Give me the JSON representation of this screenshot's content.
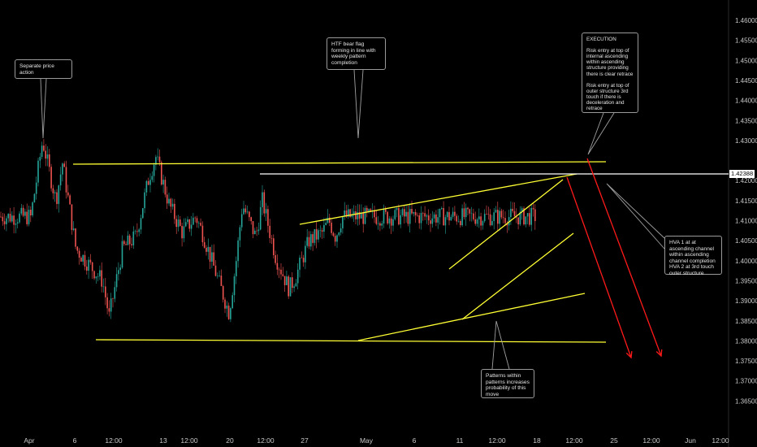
{
  "chart_data": {
    "type": "line",
    "title": "",
    "xlabel": "",
    "ylabel": "",
    "ylim": [
      1.3575,
      1.4635
    ],
    "grid": false,
    "yticks": [
      "1.46000",
      "1.45500",
      "1.45000",
      "1.44500",
      "1.44000",
      "1.43500",
      "1.43000",
      "1.42500",
      "1.42000",
      "1.41500",
      "1.41000",
      "1.40500",
      "1.40000",
      "1.39500",
      "1.39000",
      "1.38500",
      "1.38000",
      "1.37500",
      "1.37000",
      "1.36500"
    ],
    "xticks": [
      "Apr",
      "6",
      "12:00",
      "13",
      "12:00",
      "20",
      "12:00",
      "27",
      "May",
      "6",
      "11",
      "12:00",
      "18",
      "12:00",
      "25",
      "12:00",
      "Jun",
      "12:00"
    ],
    "current_price": "1.42388",
    "price_series": [
      {
        "date": "Apr 1",
        "value": 1.4085
      },
      {
        "date": "Apr 3",
        "value": 1.43
      },
      {
        "date": "Apr 5",
        "value": 1.415
      },
      {
        "date": "Apr 6",
        "value": 1.4245
      },
      {
        "date": "Apr 8",
        "value": 1.403
      },
      {
        "date": "Apr 10",
        "value": 1.399
      },
      {
        "date": "Apr 12",
        "value": 1.395
      },
      {
        "date": "Apr 13",
        "value": 1.386
      },
      {
        "date": "Apr 15",
        "value": 1.403
      },
      {
        "date": "Apr 17",
        "value": 1.406
      },
      {
        "date": "Apr 19",
        "value": 1.421
      },
      {
        "date": "Apr 20",
        "value": 1.426
      },
      {
        "date": "Apr 22",
        "value": 1.414
      },
      {
        "date": "Apr 24",
        "value": 1.407
      },
      {
        "date": "Apr 26",
        "value": 1.411
      },
      {
        "date": "Apr 27",
        "value": 1.407
      },
      {
        "date": "Apr 29",
        "value": 1.397
      },
      {
        "date": "May 1",
        "value": 1.387
      },
      {
        "date": "May 2",
        "value": 1.399
      },
      {
        "date": "May 3",
        "value": 1.414
      },
      {
        "date": "May 5",
        "value": 1.406
      },
      {
        "date": "May 6",
        "value": 1.415
      },
      {
        "date": "May 8",
        "value": 1.401
      },
      {
        "date": "May 10",
        "value": 1.393
      },
      {
        "date": "May 11",
        "value": 1.396
      },
      {
        "date": "May 13",
        "value": 1.405
      },
      {
        "date": "May 15",
        "value": 1.407
      },
      {
        "date": "May 16",
        "value": 1.41
      },
      {
        "date": "May 17",
        "value": 1.406
      },
      {
        "date": "May 18",
        "value": 1.411
      }
    ],
    "annotations": {
      "separate": "Separate price action",
      "flag": "HTF bear flag forming in line with weekly pattern completion",
      "execution": "EXECUTION\n\nRisk entry at top of internal ascending within ascending structure providing there is clear retrace\n\nRisk entry at top of outer structure 3rd touch if there is deceleration and retrace",
      "hva": "HVA 1 at at ascending channel within ascending channel completion HVA 2 at 3rd touch outer structure",
      "patterns": "Patterns within patterns increases probability of this move"
    },
    "colors": {
      "background": "#000000",
      "trendline": "#ffff33",
      "projection": "#ff1a1a",
      "price_line": "#ffffff",
      "candle_up": "#26a69a",
      "candle_down": "#ef5350"
    }
  }
}
